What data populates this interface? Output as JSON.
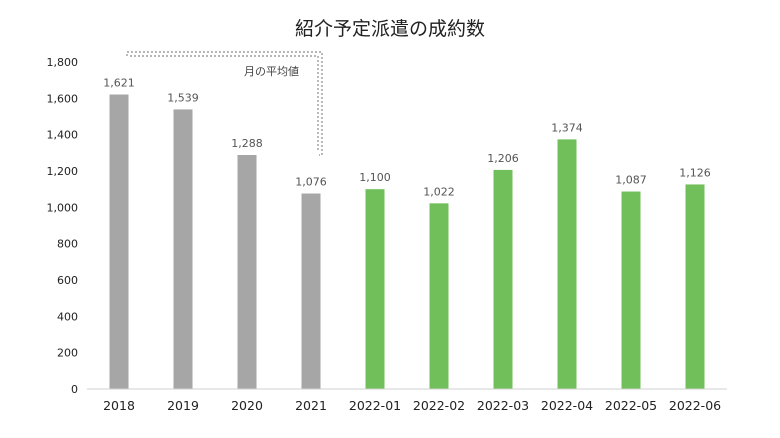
{
  "chart_data": {
    "type": "bar",
    "title": "紹介予定派遣の成約数",
    "categories": [
      "2018",
      "2019",
      "2020",
      "2021",
      "2022-01",
      "2022-02",
      "2022-03",
      "2022-04",
      "2022-05",
      "2022-06"
    ],
    "values": [
      1621,
      1539,
      1288,
      1076,
      1100,
      1022,
      1206,
      1374,
      1087,
      1126
    ],
    "data_labels": [
      "1,621",
      "1,539",
      "1,288",
      "1,076",
      "1,100",
      "1,022",
      "1,206",
      "1,374",
      "1,087",
      "1,126"
    ],
    "bar_colors": [
      "#a6a6a6",
      "#a6a6a6",
      "#a6a6a6",
      "#a6a6a6",
      "#70bf5a",
      "#70bf5a",
      "#70bf5a",
      "#70bf5a",
      "#70bf5a",
      "#70bf5a"
    ],
    "ylim": [
      0,
      1800
    ],
    "yticks": [
      0,
      200,
      400,
      600,
      800,
      1000,
      1200,
      1400,
      1600,
      1800
    ],
    "ytick_labels": [
      "0",
      "200",
      "400",
      "600",
      "800",
      "1,000",
      "1,200",
      "1,400",
      "1,600",
      "1,800"
    ],
    "annotation": "月の平均値",
    "grid": false,
    "legend": "none"
  }
}
